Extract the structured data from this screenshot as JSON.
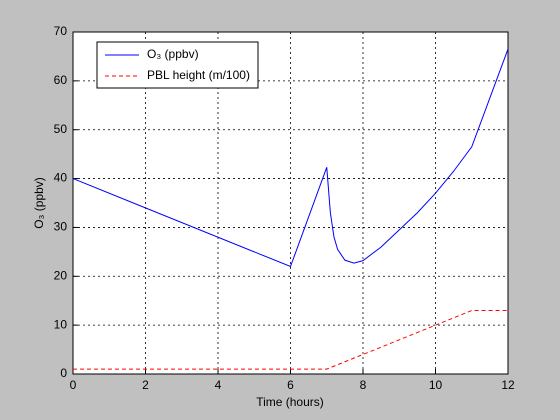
{
  "chart_data": {
    "type": "line",
    "xlabel": "Time  (hours)",
    "ylabel": "O₃  (ppbv)",
    "xlim": [
      0,
      12
    ],
    "xticks": [
      0,
      2,
      4,
      6,
      8,
      10,
      12
    ],
    "ylim": [
      0,
      70
    ],
    "yticks": [
      0,
      10,
      20,
      30,
      40,
      50,
      60,
      70
    ],
    "grid": true,
    "legend": "upper left",
    "series": [
      {
        "name": "O₃  (ppbv)",
        "color": "#0000ff",
        "dash": "solid",
        "x": [
          0,
          6,
          7,
          7.1,
          7.2,
          7.3,
          7.5,
          7.75,
          8,
          8.5,
          9,
          9.5,
          10,
          10.5,
          11,
          12
        ],
        "values": [
          40,
          22,
          42.3,
          33,
          28,
          25.5,
          23.3,
          22.7,
          23.2,
          26,
          29.5,
          33,
          37,
          41.5,
          46.5,
          66.5
        ]
      },
      {
        "name": "PBL height (m/100)",
        "color": "#ff0000",
        "dash": "dashed",
        "x": [
          0,
          7,
          11,
          12
        ],
        "values": [
          1,
          1,
          13,
          13
        ]
      }
    ]
  }
}
